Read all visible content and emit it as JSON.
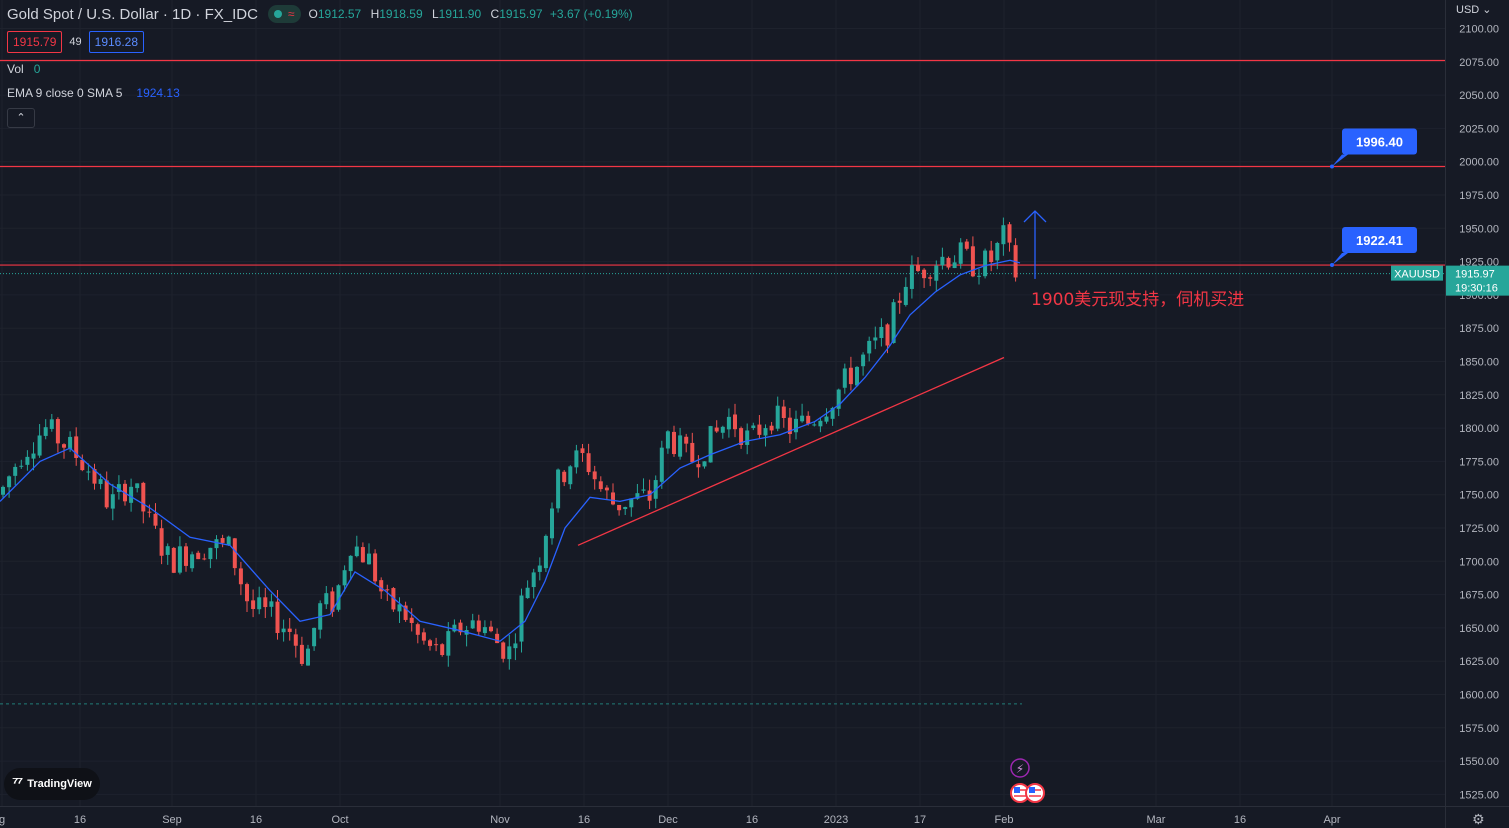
{
  "legend": {
    "title": "Gold Spot / U.S. Dollar · 1D · FX_IDC",
    "open_key": "O",
    "open": "1912.57",
    "high_key": "H",
    "high": "1918.59",
    "low_key": "L",
    "low": "1911.90",
    "close_key": "C",
    "close": "1915.97",
    "change": "+3.67 (+0.19%)",
    "bid": "1915.79",
    "spread": "49",
    "ask": "1916.28",
    "vol_label": "Vol",
    "vol_value": "0",
    "ema_label": "EMA 9 close 0 SMA 5",
    "ema_value": "1924.13",
    "collapse_icon": "chevron-up-icon",
    "collapse_glyph": "⌃"
  },
  "currency_label": "USD ⌄",
  "logo_text": "TradingView",
  "colors": {
    "background": "#161a25",
    "up": "#26a69a",
    "down": "#ef5350",
    "ema": "#2962ff",
    "level": "#f23645",
    "callout": "#2962ff",
    "annotation": "#f23645"
  },
  "chart_data": {
    "type": "candlestick",
    "symbol": "XAUUSD",
    "ylim": [
      1512,
      2110
    ],
    "y_ticks": [
      1525,
      1550,
      1575,
      1600,
      1625,
      1650,
      1675,
      1700,
      1725,
      1750,
      1775,
      1800,
      1825,
      1850,
      1875,
      1900,
      1925,
      1950,
      1975,
      2000,
      2025,
      2050,
      2075,
      2100
    ],
    "x_ticks": [
      {
        "label": "g",
        "x": 2
      },
      {
        "label": "16",
        "x": 80
      },
      {
        "label": "Sep",
        "x": 172
      },
      {
        "label": "16",
        "x": 256
      },
      {
        "label": "Oct",
        "x": 340
      },
      {
        "label": "Nov",
        "x": 500
      },
      {
        "label": "16",
        "x": 584
      },
      {
        "label": "Dec",
        "x": 668
      },
      {
        "label": "16",
        "x": 752
      },
      {
        "label": "2023",
        "x": 836
      },
      {
        "label": "17",
        "x": 920
      },
      {
        "label": "Feb",
        "x": 1004
      },
      {
        "label": "Mar",
        "x": 1156
      },
      {
        "label": "16",
        "x": 1240
      },
      {
        "label": "Apr",
        "x": 1332
      }
    ],
    "close_path": [
      {
        "x": 0,
        "c": 1750
      },
      {
        "x": 20,
        "c": 1780
      },
      {
        "x": 45,
        "c": 1800
      },
      {
        "x": 70,
        "c": 1785
      },
      {
        "x": 90,
        "c": 1768
      },
      {
        "x": 110,
        "c": 1742
      },
      {
        "x": 130,
        "c": 1760
      },
      {
        "x": 150,
        "c": 1728
      },
      {
        "x": 170,
        "c": 1700
      },
      {
        "x": 190,
        "c": 1708
      },
      {
        "x": 210,
        "c": 1712
      },
      {
        "x": 230,
        "c": 1710
      },
      {
        "x": 250,
        "c": 1665
      },
      {
        "x": 270,
        "c": 1660
      },
      {
        "x": 290,
        "c": 1648
      },
      {
        "x": 305,
        "c": 1626
      },
      {
        "x": 320,
        "c": 1665
      },
      {
        "x": 335,
        "c": 1670
      },
      {
        "x": 350,
        "c": 1715
      },
      {
        "x": 370,
        "c": 1700
      },
      {
        "x": 385,
        "c": 1670
      },
      {
        "x": 405,
        "c": 1660
      },
      {
        "x": 420,
        "c": 1640
      },
      {
        "x": 440,
        "c": 1630
      },
      {
        "x": 460,
        "c": 1650
      },
      {
        "x": 480,
        "c": 1655
      },
      {
        "x": 495,
        "c": 1640
      },
      {
        "x": 510,
        "c": 1632
      },
      {
        "x": 525,
        "c": 1680
      },
      {
        "x": 540,
        "c": 1705
      },
      {
        "x": 555,
        "c": 1755
      },
      {
        "x": 570,
        "c": 1775
      },
      {
        "x": 585,
        "c": 1778
      },
      {
        "x": 600,
        "c": 1755
      },
      {
        "x": 615,
        "c": 1742
      },
      {
        "x": 630,
        "c": 1746
      },
      {
        "x": 650,
        "c": 1748
      },
      {
        "x": 668,
        "c": 1795
      },
      {
        "x": 690,
        "c": 1775
      },
      {
        "x": 710,
        "c": 1790
      },
      {
        "x": 730,
        "c": 1808
      },
      {
        "x": 750,
        "c": 1790
      },
      {
        "x": 770,
        "c": 1810
      },
      {
        "x": 790,
        "c": 1800
      },
      {
        "x": 810,
        "c": 1805
      },
      {
        "x": 830,
        "c": 1820
      },
      {
        "x": 850,
        "c": 1840
      },
      {
        "x": 870,
        "c": 1858
      },
      {
        "x": 890,
        "c": 1875
      },
      {
        "x": 905,
        "c": 1912
      },
      {
        "x": 920,
        "c": 1918
      },
      {
        "x": 940,
        "c": 1928
      },
      {
        "x": 960,
        "c": 1930
      },
      {
        "x": 975,
        "c": 1922
      },
      {
        "x": 990,
        "c": 1925
      },
      {
        "x": 1005,
        "c": 1945
      },
      {
        "x": 1013,
        "c": 1918
      },
      {
        "x": 1020,
        "c": 1914
      }
    ],
    "ema_path": [
      {
        "x": 0,
        "c": 1745
      },
      {
        "x": 40,
        "c": 1775
      },
      {
        "x": 70,
        "c": 1785
      },
      {
        "x": 110,
        "c": 1758
      },
      {
        "x": 150,
        "c": 1740
      },
      {
        "x": 190,
        "c": 1718
      },
      {
        "x": 230,
        "c": 1712
      },
      {
        "x": 270,
        "c": 1678
      },
      {
        "x": 300,
        "c": 1655
      },
      {
        "x": 330,
        "c": 1660
      },
      {
        "x": 355,
        "c": 1692
      },
      {
        "x": 385,
        "c": 1678
      },
      {
        "x": 420,
        "c": 1655
      },
      {
        "x": 460,
        "c": 1648
      },
      {
        "x": 500,
        "c": 1640
      },
      {
        "x": 525,
        "c": 1655
      },
      {
        "x": 545,
        "c": 1685
      },
      {
        "x": 565,
        "c": 1725
      },
      {
        "x": 590,
        "c": 1748
      },
      {
        "x": 620,
        "c": 1745
      },
      {
        "x": 650,
        "c": 1750
      },
      {
        "x": 680,
        "c": 1770
      },
      {
        "x": 710,
        "c": 1780
      },
      {
        "x": 745,
        "c": 1790
      },
      {
        "x": 780,
        "c": 1795
      },
      {
        "x": 815,
        "c": 1805
      },
      {
        "x": 840,
        "c": 1818
      },
      {
        "x": 865,
        "c": 1838
      },
      {
        "x": 890,
        "c": 1862
      },
      {
        "x": 910,
        "c": 1885
      },
      {
        "x": 935,
        "c": 1902
      },
      {
        "x": 960,
        "c": 1915
      },
      {
        "x": 985,
        "c": 1922
      },
      {
        "x": 1010,
        "c": 1926
      },
      {
        "x": 1020,
        "c": 1924
      }
    ],
    "horizontal_levels": [
      2076,
      1996.4,
      1922.41
    ],
    "current_price": {
      "value": 1915.97,
      "label": "1915.97",
      "time": "19:30:16"
    },
    "support_dashed_level": 1593,
    "trendline": {
      "from": {
        "x": 578,
        "y": 1712
      },
      "to": {
        "x": 1004,
        "y": 1853
      }
    },
    "callouts": [
      {
        "text": "1996.40",
        "price": 1996.4
      },
      {
        "text": "1922.41",
        "price": 1922.41
      }
    ],
    "arrow": {
      "x": 1035,
      "from": 1912,
      "to": 1963
    },
    "annotation": "1900美元现支持，伺机买进",
    "event_icons": [
      "lightning-icon",
      "us-flag-icon",
      "us-flag-icon"
    ]
  }
}
